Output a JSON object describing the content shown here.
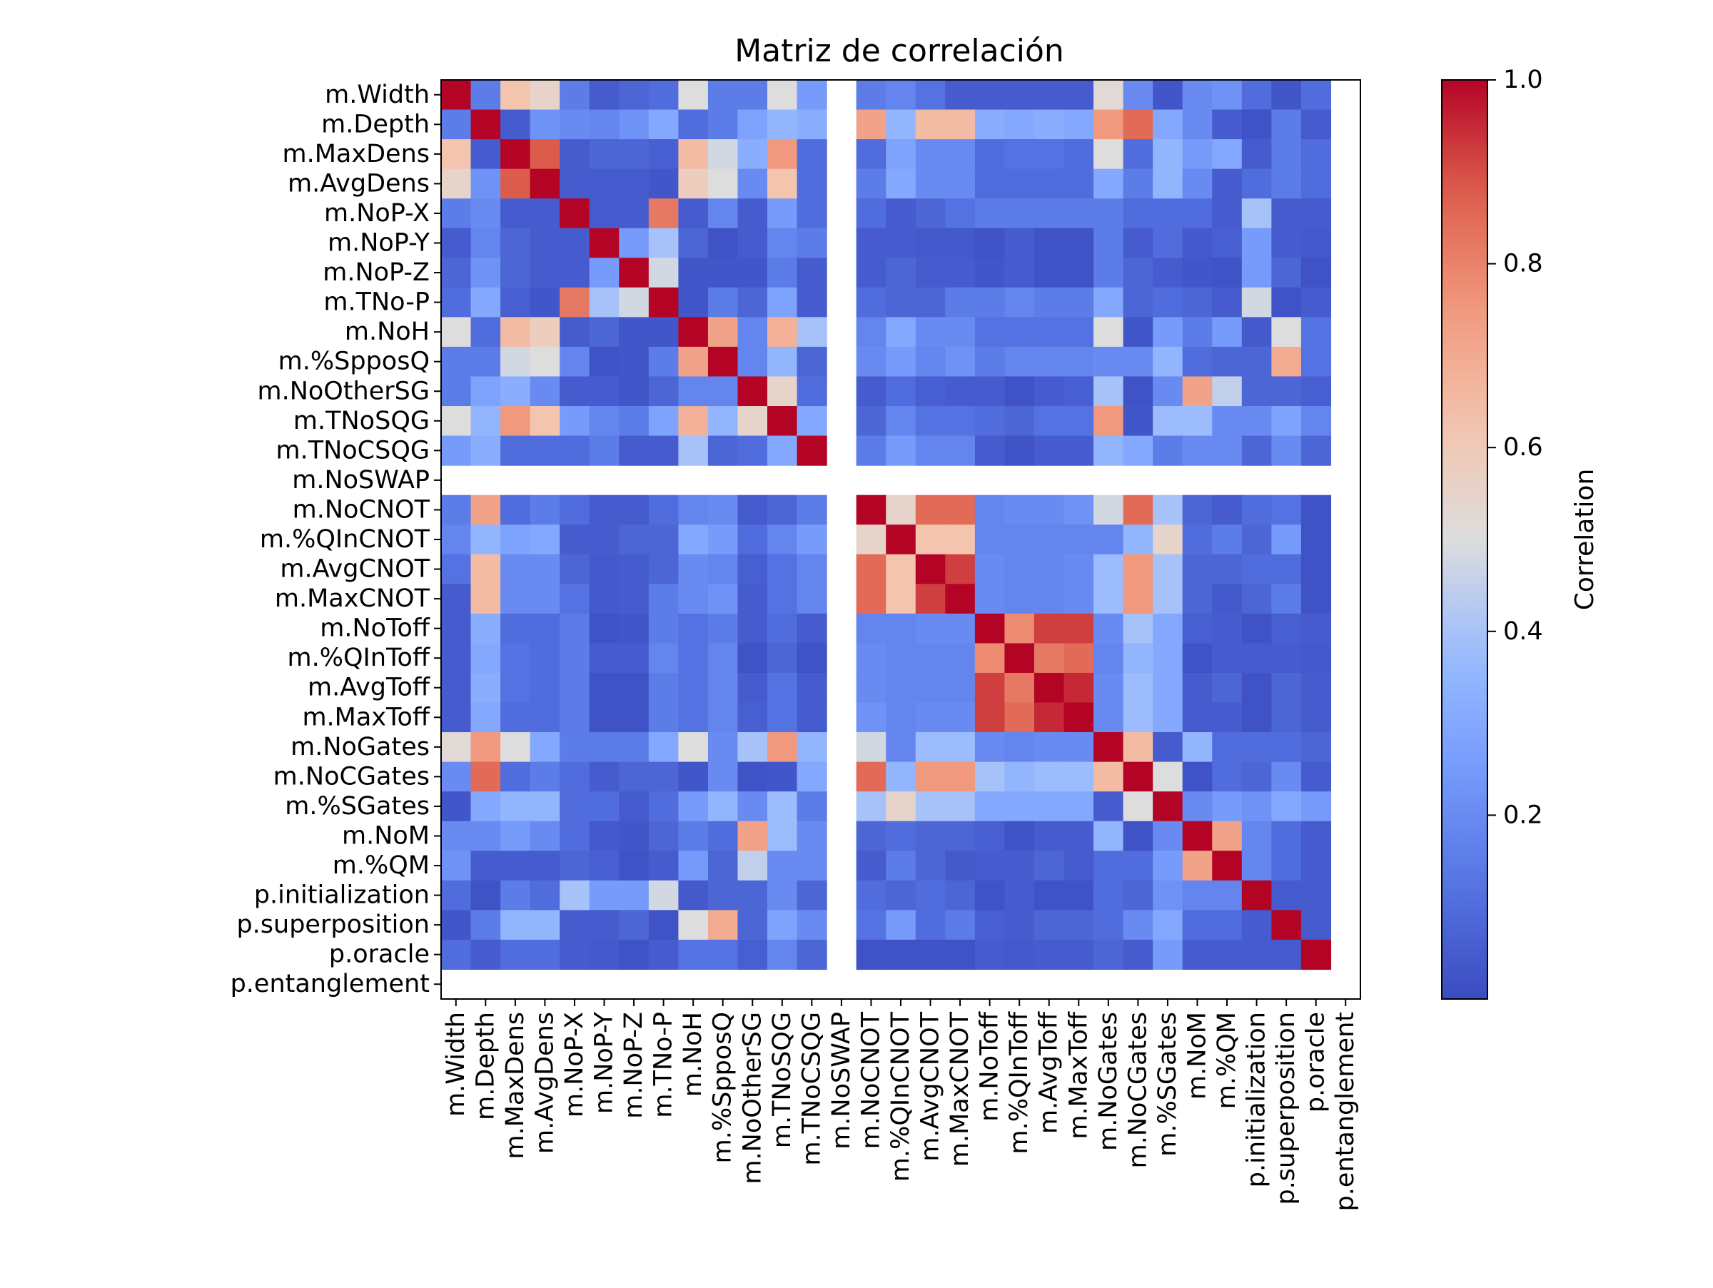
{
  "chart_data": {
    "type": "heatmap",
    "title": "Matriz de correlación",
    "colorbar_label": "Correlation",
    "colorbar_ticks": [
      {
        "value": 0.2,
        "label": "0.2"
      },
      {
        "value": 0.4,
        "label": "0.4"
      },
      {
        "value": 0.6,
        "label": "0.6"
      },
      {
        "value": 0.8,
        "label": "0.8"
      },
      {
        "value": 1.0,
        "label": "1.0"
      }
    ],
    "vmin": 0.0,
    "vmax": 1.0,
    "colormap": "coolwarm",
    "grid": false,
    "labels": [
      "m.Width",
      "m.Depth",
      "m.MaxDens",
      "m.AvgDens",
      "m.NoP-X",
      "m.NoP-Y",
      "m.NoP-Z",
      "m.TNo-P",
      "m.NoH",
      "m.%SpposQ",
      "m.NoOtherSG",
      "m.TNoSQG",
      "m.TNoCSQG",
      "m.NoSWAP",
      "m.NoCNOT",
      "m.%QInCNOT",
      "m.AvgCNOT",
      "m.MaxCNOT",
      "m.NoToff",
      "m.%QInToff",
      "m.AvgToff",
      "m.MaxToff",
      "m.NoGates",
      "m.NoCGates",
      "m.%SGates",
      "m.NoM",
      "m.%QM",
      "p.initialization",
      "p.superposition",
      "p.oracle",
      "p.entanglement"
    ],
    "matrix": [
      [
        1.0,
        0.15,
        0.62,
        0.55,
        0.15,
        0.05,
        0.08,
        0.1,
        0.5,
        0.15,
        0.15,
        0.5,
        0.25,
        null,
        0.15,
        0.18,
        0.12,
        0.05,
        0.05,
        0.05,
        0.05,
        0.05,
        0.52,
        0.2,
        0.03,
        0.2,
        0.22,
        0.1,
        0.03,
        0.1,
        null
      ],
      [
        0.15,
        1.0,
        0.05,
        0.22,
        0.2,
        0.18,
        0.22,
        0.3,
        0.1,
        0.15,
        0.28,
        0.35,
        0.32,
        null,
        0.72,
        0.35,
        0.65,
        0.65,
        0.32,
        0.3,
        0.32,
        0.3,
        0.75,
        0.85,
        0.3,
        0.2,
        0.05,
        0.02,
        0.15,
        0.05,
        null
      ],
      [
        0.62,
        0.05,
        1.0,
        0.88,
        0.05,
        0.08,
        0.08,
        0.06,
        0.65,
        0.48,
        0.32,
        0.75,
        0.1,
        null,
        0.1,
        0.28,
        0.2,
        0.2,
        0.1,
        0.12,
        0.12,
        0.1,
        0.5,
        0.1,
        0.35,
        0.25,
        0.3,
        0.05,
        0.15,
        0.1,
        null
      ],
      [
        0.55,
        0.22,
        0.88,
        1.0,
        0.05,
        0.05,
        0.05,
        0.03,
        0.58,
        0.5,
        0.2,
        0.62,
        0.1,
        null,
        0.15,
        0.3,
        0.2,
        0.2,
        0.1,
        0.1,
        0.1,
        0.1,
        0.3,
        0.15,
        0.35,
        0.2,
        0.05,
        0.1,
        0.15,
        0.1,
        null
      ],
      [
        0.15,
        0.2,
        0.05,
        0.05,
        1.0,
        0.05,
        0.05,
        0.82,
        0.05,
        0.18,
        0.05,
        0.25,
        0.1,
        null,
        0.1,
        0.05,
        0.08,
        0.12,
        0.15,
        0.15,
        0.15,
        0.15,
        0.15,
        0.1,
        0.1,
        0.1,
        0.05,
        0.4,
        0.05,
        0.05,
        null
      ],
      [
        0.05,
        0.18,
        0.08,
        0.05,
        0.05,
        1.0,
        0.25,
        0.4,
        0.08,
        0.02,
        0.05,
        0.18,
        0.15,
        null,
        0.05,
        0.05,
        0.04,
        0.04,
        0.02,
        0.05,
        0.02,
        0.02,
        0.15,
        0.05,
        0.1,
        0.04,
        0.06,
        0.25,
        0.05,
        0.04,
        null
      ],
      [
        0.08,
        0.22,
        0.08,
        0.05,
        0.05,
        0.25,
        1.0,
        0.48,
        0.03,
        0.03,
        0.03,
        0.15,
        0.05,
        null,
        0.05,
        0.08,
        0.05,
        0.05,
        0.03,
        0.05,
        0.02,
        0.02,
        0.15,
        0.08,
        0.05,
        0.03,
        0.02,
        0.25,
        0.08,
        0.02,
        null
      ],
      [
        0.1,
        0.3,
        0.06,
        0.03,
        0.82,
        0.4,
        0.48,
        1.0,
        0.03,
        0.15,
        0.08,
        0.28,
        0.05,
        null,
        0.1,
        0.08,
        0.08,
        0.15,
        0.15,
        0.18,
        0.15,
        0.15,
        0.3,
        0.08,
        0.1,
        0.08,
        0.05,
        0.48,
        0.02,
        0.05,
        null
      ],
      [
        0.5,
        0.1,
        0.65,
        0.58,
        0.05,
        0.08,
        0.03,
        0.03,
        1.0,
        0.72,
        0.18,
        0.68,
        0.4,
        null,
        0.18,
        0.3,
        0.2,
        0.2,
        0.12,
        0.12,
        0.12,
        0.12,
        0.5,
        0.03,
        0.25,
        0.15,
        0.25,
        0.04,
        0.5,
        0.12,
        null
      ],
      [
        0.15,
        0.15,
        0.48,
        0.5,
        0.18,
        0.02,
        0.03,
        0.15,
        0.72,
        1.0,
        0.18,
        0.35,
        0.08,
        null,
        0.2,
        0.25,
        0.18,
        0.22,
        0.15,
        0.18,
        0.18,
        0.18,
        0.2,
        0.2,
        0.35,
        0.1,
        0.08,
        0.08,
        0.7,
        0.12,
        null
      ],
      [
        0.15,
        0.28,
        0.32,
        0.2,
        0.05,
        0.05,
        0.03,
        0.08,
        0.18,
        0.18,
        1.0,
        0.55,
        0.1,
        null,
        0.05,
        0.1,
        0.06,
        0.05,
        0.05,
        0.02,
        0.05,
        0.06,
        0.4,
        0.02,
        0.2,
        0.72,
        0.45,
        0.08,
        0.08,
        0.06,
        null
      ],
      [
        0.5,
        0.35,
        0.75,
        0.62,
        0.25,
        0.18,
        0.15,
        0.28,
        0.68,
        0.35,
        0.55,
        1.0,
        0.3,
        null,
        0.08,
        0.18,
        0.12,
        0.12,
        0.1,
        0.08,
        0.12,
        0.12,
        0.75,
        0.03,
        0.38,
        0.38,
        0.2,
        0.2,
        0.28,
        0.18,
        null
      ],
      [
        0.25,
        0.32,
        0.1,
        0.1,
        0.1,
        0.15,
        0.05,
        0.05,
        0.4,
        0.08,
        0.1,
        0.3,
        1.0,
        null,
        0.15,
        0.25,
        0.18,
        0.18,
        0.05,
        0.02,
        0.05,
        0.05,
        0.35,
        0.3,
        0.15,
        0.2,
        0.2,
        0.08,
        0.2,
        0.08,
        null
      ],
      [
        null,
        null,
        null,
        null,
        null,
        null,
        null,
        null,
        null,
        null,
        null,
        null,
        null,
        null,
        null,
        null,
        null,
        null,
        null,
        null,
        null,
        null,
        null,
        null,
        null,
        null,
        null,
        null,
        null,
        null,
        null
      ],
      [
        0.15,
        0.72,
        0.1,
        0.15,
        0.1,
        0.05,
        0.05,
        0.1,
        0.18,
        0.2,
        0.05,
        0.08,
        0.15,
        null,
        1.0,
        0.55,
        0.85,
        0.85,
        0.18,
        0.2,
        0.2,
        0.22,
        0.48,
        0.85,
        0.4,
        0.08,
        0.05,
        0.1,
        0.12,
        0.02,
        null
      ],
      [
        0.18,
        0.35,
        0.28,
        0.3,
        0.05,
        0.05,
        0.08,
        0.08,
        0.3,
        0.25,
        0.1,
        0.18,
        0.25,
        null,
        0.55,
        1.0,
        0.62,
        0.62,
        0.18,
        0.18,
        0.18,
        0.18,
        0.18,
        0.35,
        0.55,
        0.1,
        0.15,
        0.08,
        0.25,
        0.02,
        null
      ],
      [
        0.12,
        0.65,
        0.2,
        0.2,
        0.08,
        0.04,
        0.05,
        0.08,
        0.2,
        0.18,
        0.06,
        0.12,
        0.18,
        null,
        0.85,
        0.62,
        1.0,
        0.92,
        0.2,
        0.18,
        0.18,
        0.2,
        0.38,
        0.75,
        0.4,
        0.08,
        0.08,
        0.1,
        0.1,
        0.02,
        null
      ],
      [
        0.05,
        0.65,
        0.2,
        0.2,
        0.12,
        0.04,
        0.05,
        0.15,
        0.2,
        0.22,
        0.05,
        0.12,
        0.18,
        null,
        0.85,
        0.62,
        0.92,
        1.0,
        0.2,
        0.18,
        0.18,
        0.2,
        0.38,
        0.75,
        0.4,
        0.08,
        0.04,
        0.08,
        0.15,
        0.02,
        null
      ],
      [
        0.05,
        0.32,
        0.1,
        0.1,
        0.15,
        0.02,
        0.03,
        0.15,
        0.12,
        0.15,
        0.05,
        0.1,
        0.05,
        null,
        0.18,
        0.18,
        0.2,
        0.2,
        1.0,
        0.78,
        0.92,
        0.92,
        0.2,
        0.4,
        0.3,
        0.06,
        0.05,
        0.02,
        0.06,
        0.05,
        null
      ],
      [
        0.05,
        0.3,
        0.12,
        0.1,
        0.15,
        0.05,
        0.05,
        0.18,
        0.12,
        0.18,
        0.02,
        0.08,
        0.02,
        null,
        0.2,
        0.18,
        0.18,
        0.18,
        0.78,
        1.0,
        0.82,
        0.85,
        0.18,
        0.35,
        0.3,
        0.02,
        0.05,
        0.05,
        0.05,
        0.04,
        null
      ],
      [
        0.05,
        0.32,
        0.12,
        0.1,
        0.15,
        0.02,
        0.02,
        0.15,
        0.12,
        0.18,
        0.05,
        0.12,
        0.05,
        null,
        0.2,
        0.18,
        0.18,
        0.18,
        0.92,
        0.82,
        1.0,
        0.95,
        0.2,
        0.38,
        0.3,
        0.05,
        0.08,
        0.02,
        0.08,
        0.05,
        null
      ],
      [
        0.05,
        0.3,
        0.1,
        0.1,
        0.15,
        0.02,
        0.02,
        0.15,
        0.12,
        0.18,
        0.06,
        0.12,
        0.05,
        null,
        0.22,
        0.18,
        0.2,
        0.2,
        0.92,
        0.85,
        0.95,
        1.0,
        0.2,
        0.38,
        0.3,
        0.05,
        0.05,
        0.02,
        0.08,
        0.05,
        null
      ],
      [
        0.52,
        0.75,
        0.5,
        0.3,
        0.15,
        0.15,
        0.15,
        0.3,
        0.5,
        0.2,
        0.4,
        0.75,
        0.35,
        null,
        0.48,
        0.18,
        0.38,
        0.38,
        0.2,
        0.18,
        0.2,
        0.2,
        1.0,
        0.65,
        0.05,
        0.35,
        0.1,
        0.1,
        0.1,
        0.08,
        null
      ],
      [
        0.2,
        0.85,
        0.1,
        0.15,
        0.1,
        0.05,
        0.08,
        0.08,
        0.03,
        0.2,
        0.02,
        0.03,
        0.3,
        null,
        0.85,
        0.35,
        0.75,
        0.75,
        0.4,
        0.35,
        0.38,
        0.38,
        0.65,
        1.0,
        0.5,
        0.02,
        0.1,
        0.08,
        0.2,
        0.05,
        null
      ],
      [
        0.03,
        0.3,
        0.35,
        0.35,
        0.1,
        0.1,
        0.05,
        0.1,
        0.25,
        0.35,
        0.2,
        0.38,
        0.15,
        null,
        0.4,
        0.55,
        0.4,
        0.4,
        0.3,
        0.3,
        0.3,
        0.3,
        0.05,
        0.5,
        1.0,
        0.2,
        0.25,
        0.22,
        0.3,
        0.25,
        null
      ],
      [
        0.2,
        0.2,
        0.25,
        0.2,
        0.1,
        0.04,
        0.03,
        0.08,
        0.15,
        0.1,
        0.72,
        0.38,
        0.2,
        null,
        0.08,
        0.1,
        0.08,
        0.08,
        0.06,
        0.02,
        0.05,
        0.05,
        0.35,
        0.02,
        0.2,
        1.0,
        0.72,
        0.18,
        0.1,
        0.05,
        null
      ],
      [
        0.22,
        0.05,
        0.05,
        0.05,
        0.08,
        0.06,
        0.02,
        0.05,
        0.25,
        0.08,
        0.45,
        0.2,
        0.2,
        null,
        0.05,
        0.15,
        0.08,
        0.04,
        0.05,
        0.05,
        0.08,
        0.05,
        0.1,
        0.1,
        0.25,
        0.72,
        1.0,
        0.18,
        0.1,
        0.05,
        null
      ],
      [
        0.1,
        0.02,
        0.15,
        0.1,
        0.4,
        0.25,
        0.25,
        0.48,
        0.04,
        0.08,
        0.08,
        0.2,
        0.08,
        null,
        0.1,
        0.08,
        0.1,
        0.08,
        0.02,
        0.05,
        0.02,
        0.02,
        0.1,
        0.08,
        0.22,
        0.18,
        0.18,
        1.0,
        0.05,
        0.05,
        null
      ],
      [
        0.03,
        0.15,
        0.35,
        0.35,
        0.05,
        0.05,
        0.08,
        0.02,
        0.5,
        0.7,
        0.08,
        0.28,
        0.2,
        null,
        0.12,
        0.25,
        0.1,
        0.15,
        0.06,
        0.05,
        0.08,
        0.08,
        0.1,
        0.2,
        0.3,
        0.1,
        0.1,
        0.05,
        1.0,
        0.05,
        null
      ],
      [
        0.1,
        0.05,
        0.1,
        0.1,
        0.05,
        0.04,
        0.02,
        0.05,
        0.12,
        0.12,
        0.06,
        0.18,
        0.08,
        null,
        0.02,
        0.02,
        0.02,
        0.02,
        0.05,
        0.04,
        0.05,
        0.05,
        0.08,
        0.05,
        0.25,
        0.05,
        0.05,
        0.05,
        0.05,
        1.0,
        null
      ],
      [
        null,
        null,
        null,
        null,
        null,
        null,
        null,
        null,
        null,
        null,
        null,
        null,
        null,
        null,
        null,
        null,
        null,
        null,
        null,
        null,
        null,
        null,
        null,
        null,
        null,
        null,
        null,
        null,
        null,
        null,
        null
      ]
    ]
  }
}
